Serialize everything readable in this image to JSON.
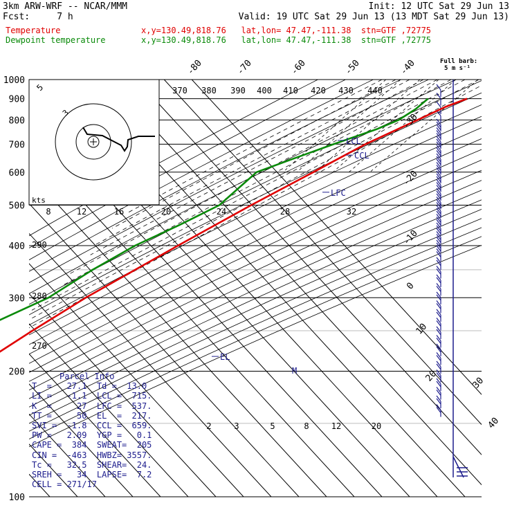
{
  "header": {
    "model": "3km ARW-WRF -- NCAR/MMM",
    "init": "Init: 12 UTC Sat 29 Jun 13",
    "fcst": "Fcst:     7 h",
    "valid": "Valid: 19 UTC Sat 29 Jun 13 (13 MDT Sat 29 Jun 13)"
  },
  "fields": [
    {
      "name": "Temperature",
      "info": "x,y=130.49,818.76   lat,lon= 47.47,-111.38  stn=GTF ,72775",
      "color": "#e00000"
    },
    {
      "name": "Dewpoint temperature",
      "info": "x,y=130.49,818.76   lat,lon= 47.47,-111.38  stn=GTF ,72775",
      "color": "#0a8a0a"
    }
  ],
  "parcel_info": {
    "title": "Parcel Info",
    "rows": [
      "T  =   27.1  Td =  13.0",
      "LI =   -1.1  LCL =  715.",
      "K  =     27  LFC =  537.",
      "TT =     50  EL  =  217.",
      "SVI =  -1.8  CCL =  659.",
      "PW =   2.09  YGP =   0.1",
      "CAPE =  384  SWEAT=  205",
      "CIN =  -463  HWBZ= 3557.",
      "Tc =   32.5  SHEAR=  24.",
      "SREH =   34  LAPSE=  7.2",
      "CELL = 271/17"
    ]
  },
  "barb_legend": {
    "title": "Full barb:",
    "unit": "5 m s⁻¹"
  },
  "hodograph": {
    "unit_label": "kts"
  },
  "colors": {
    "temperature": "#e00000",
    "dewpoint": "#0a8a0a",
    "parcel": "#1c1c8c",
    "lines": "#000000"
  },
  "chart_data": {
    "type": "line",
    "xlabel": "",
    "ylabel": "",
    "pressure_levels": [
      100,
      200,
      300,
      400,
      500,
      600,
      700,
      800,
      900,
      1000
    ],
    "temperature_ticks": [
      -80,
      -70,
      -60,
      -50,
      -40,
      -30,
      -20,
      -10,
      0,
      10,
      20,
      30,
      40
    ],
    "theta_ticks": [
      370,
      380,
      390,
      400,
      410,
      420,
      430,
      440
    ],
    "theta_e_ticks": [
      290,
      280,
      270
    ],
    "mixing_ratio_ticks": [
      "2",
      "3",
      "5",
      "8",
      "12",
      "20"
    ],
    "upper_mixing_ticks": [
      "8",
      "12",
      "16",
      "20",
      "24",
      "28",
      "32"
    ],
    "annotations": [
      "EL",
      "LFC",
      "CCL",
      "LCL",
      "M"
    ],
    "series": [
      {
        "name": "Temperature",
        "points": [
          [
            100,
            -55.8
          ],
          [
            130,
            -58.5
          ],
          [
            160,
            -60.8
          ],
          [
            190,
            -60.7
          ],
          [
            210,
            -60.0
          ],
          [
            250,
            -52.8
          ],
          [
            300,
            -44.5
          ],
          [
            400,
            -28.5
          ],
          [
            500,
            -15.5
          ],
          [
            600,
            -4.0
          ],
          [
            700,
            5.5
          ],
          [
            800,
            16.3
          ],
          [
            860,
            22.0
          ],
          [
            900,
            27.1
          ]
        ]
      },
      {
        "name": "Dewpoint temperature",
        "points": [
          [
            100,
            -79
          ],
          [
            130,
            -85
          ],
          [
            160,
            -89
          ],
          [
            185,
            -88
          ],
          [
            210,
            -85
          ],
          [
            250,
            -73
          ],
          [
            300,
            -58
          ],
          [
            350,
            -51.3
          ],
          [
            400,
            -44
          ],
          [
            450,
            -34.5
          ],
          [
            500,
            -27
          ],
          [
            600,
            -24.5
          ],
          [
            650,
            -15
          ],
          [
            700,
            -6
          ],
          [
            760,
            4.5
          ],
          [
            800,
            9.5
          ],
          [
            850,
            12
          ],
          [
            900,
            13.0
          ]
        ]
      }
    ],
    "parcel": {
      "lcl_hpa": 715,
      "lfc_hpa": 537,
      "el_hpa": 217,
      "ccl_hpa": 659
    }
  }
}
